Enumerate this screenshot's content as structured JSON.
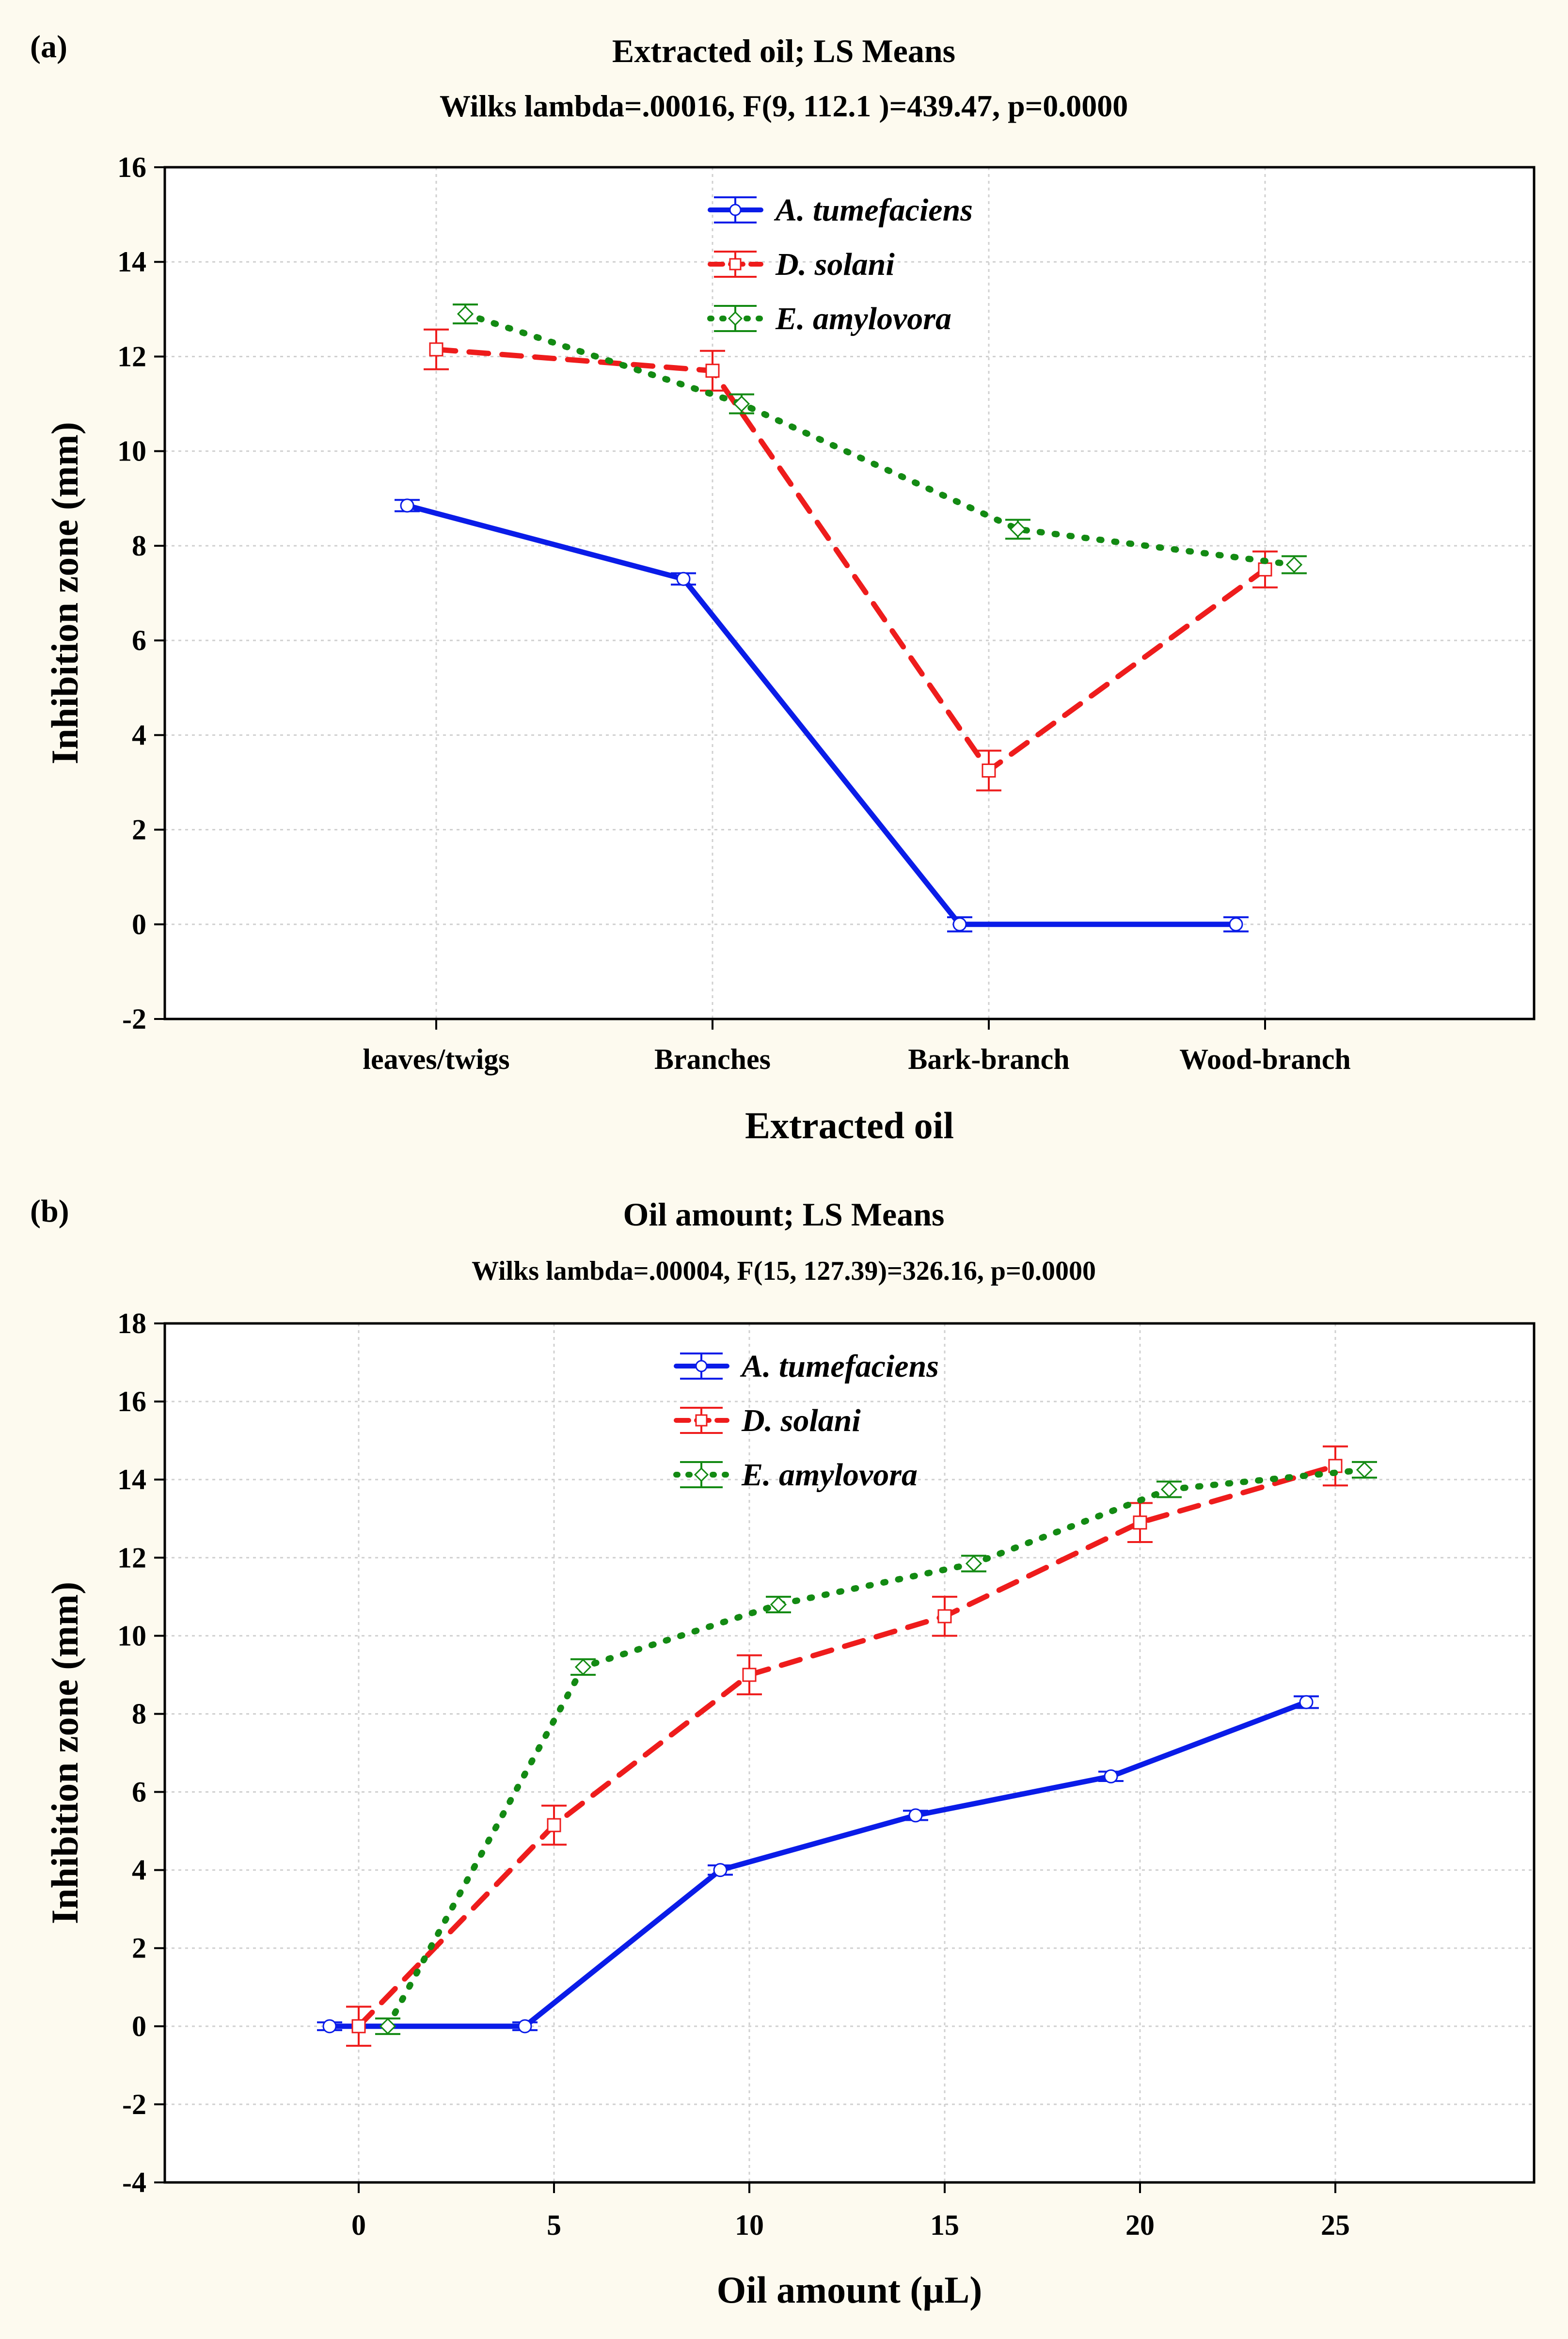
{
  "charts": [
    {
      "panel_label": "(a)",
      "title": "Extracted oil; LS Means",
      "subtitle": "Wilks lambda=.00016, F(9, 112.1 )=439.47, p=0.0000"
    },
    {
      "panel_label": "(b)",
      "title": "Oil amount; LS Means",
      "subtitle": "Wilks lambda=.00004, F(15, 127.39)=326.16, p=0.0000"
    }
  ],
  "colors": {
    "background": "#fdfaef",
    "A. tumefaciens": "#0a1ce8",
    "D. solani": "#ee1c1c",
    "E. amylovora": "#138a13"
  },
  "chart_data": [
    {
      "type": "line",
      "title": "Extracted oil; LS Means",
      "subtitle": "Wilks lambda=.00016, F(9, 112.1 )=439.47, p=0.0000",
      "xlabel": "Extracted oil",
      "ylabel": "Inhibition zone (mm)",
      "categories": [
        "leaves/twigs",
        "Branches",
        "Bark-branch",
        "Wood-branch"
      ],
      "ylim": [
        -2,
        16
      ],
      "yticks": [
        "-2",
        "0",
        "2",
        "4",
        "6",
        "8",
        "10",
        "12",
        "14",
        "16"
      ],
      "grid": true,
      "legend": "top-center",
      "series": [
        {
          "name": "A. tumefaciens",
          "values": [
            8.85,
            7.3,
            0.0,
            0.0
          ],
          "err": [
            0.12,
            0.12,
            0.15,
            0.15
          ],
          "style": "solid"
        },
        {
          "name": "D. solani",
          "values": [
            12.15,
            11.7,
            3.25,
            7.5
          ],
          "err": [
            0.42,
            0.42,
            0.42,
            0.38
          ],
          "style": "dashed"
        },
        {
          "name": "E. amylovora",
          "values": [
            12.9,
            11.0,
            8.35,
            7.6
          ],
          "err": [
            0.2,
            0.2,
            0.2,
            0.18
          ],
          "style": "dotted"
        }
      ]
    },
    {
      "type": "line",
      "title": "Oil amount; LS Means",
      "subtitle": "Wilks lambda=.00004, F(15, 127.39)=326.16, p=0.0000",
      "xlabel": "Oil amount (µL)",
      "ylabel": "Inhibition zone (mm)",
      "categories": [
        "0",
        "5",
        "10",
        "15",
        "20",
        "25"
      ],
      "ylim": [
        -4,
        18
      ],
      "yticks": [
        "-4",
        "-2",
        "0",
        "2",
        "4",
        "6",
        "8",
        "10",
        "12",
        "14",
        "16",
        "18"
      ],
      "grid": true,
      "legend": "top-center",
      "series": [
        {
          "name": "A. tumefaciens",
          "values": [
            0.0,
            0.0,
            4.0,
            5.4,
            6.4,
            8.3
          ],
          "err": [
            0.1,
            0.1,
            0.12,
            0.12,
            0.12,
            0.15
          ],
          "style": "solid"
        },
        {
          "name": "D. solani",
          "values": [
            0.0,
            5.15,
            9.0,
            10.5,
            12.9,
            14.35
          ],
          "err": [
            0.5,
            0.5,
            0.5,
            0.5,
            0.5,
            0.5
          ],
          "style": "dashed"
        },
        {
          "name": "E. amylovora",
          "values": [
            0.0,
            9.2,
            10.8,
            11.85,
            13.75,
            14.25
          ],
          "err": [
            0.2,
            0.2,
            0.2,
            0.2,
            0.2,
            0.2
          ],
          "style": "dotted"
        }
      ]
    }
  ]
}
